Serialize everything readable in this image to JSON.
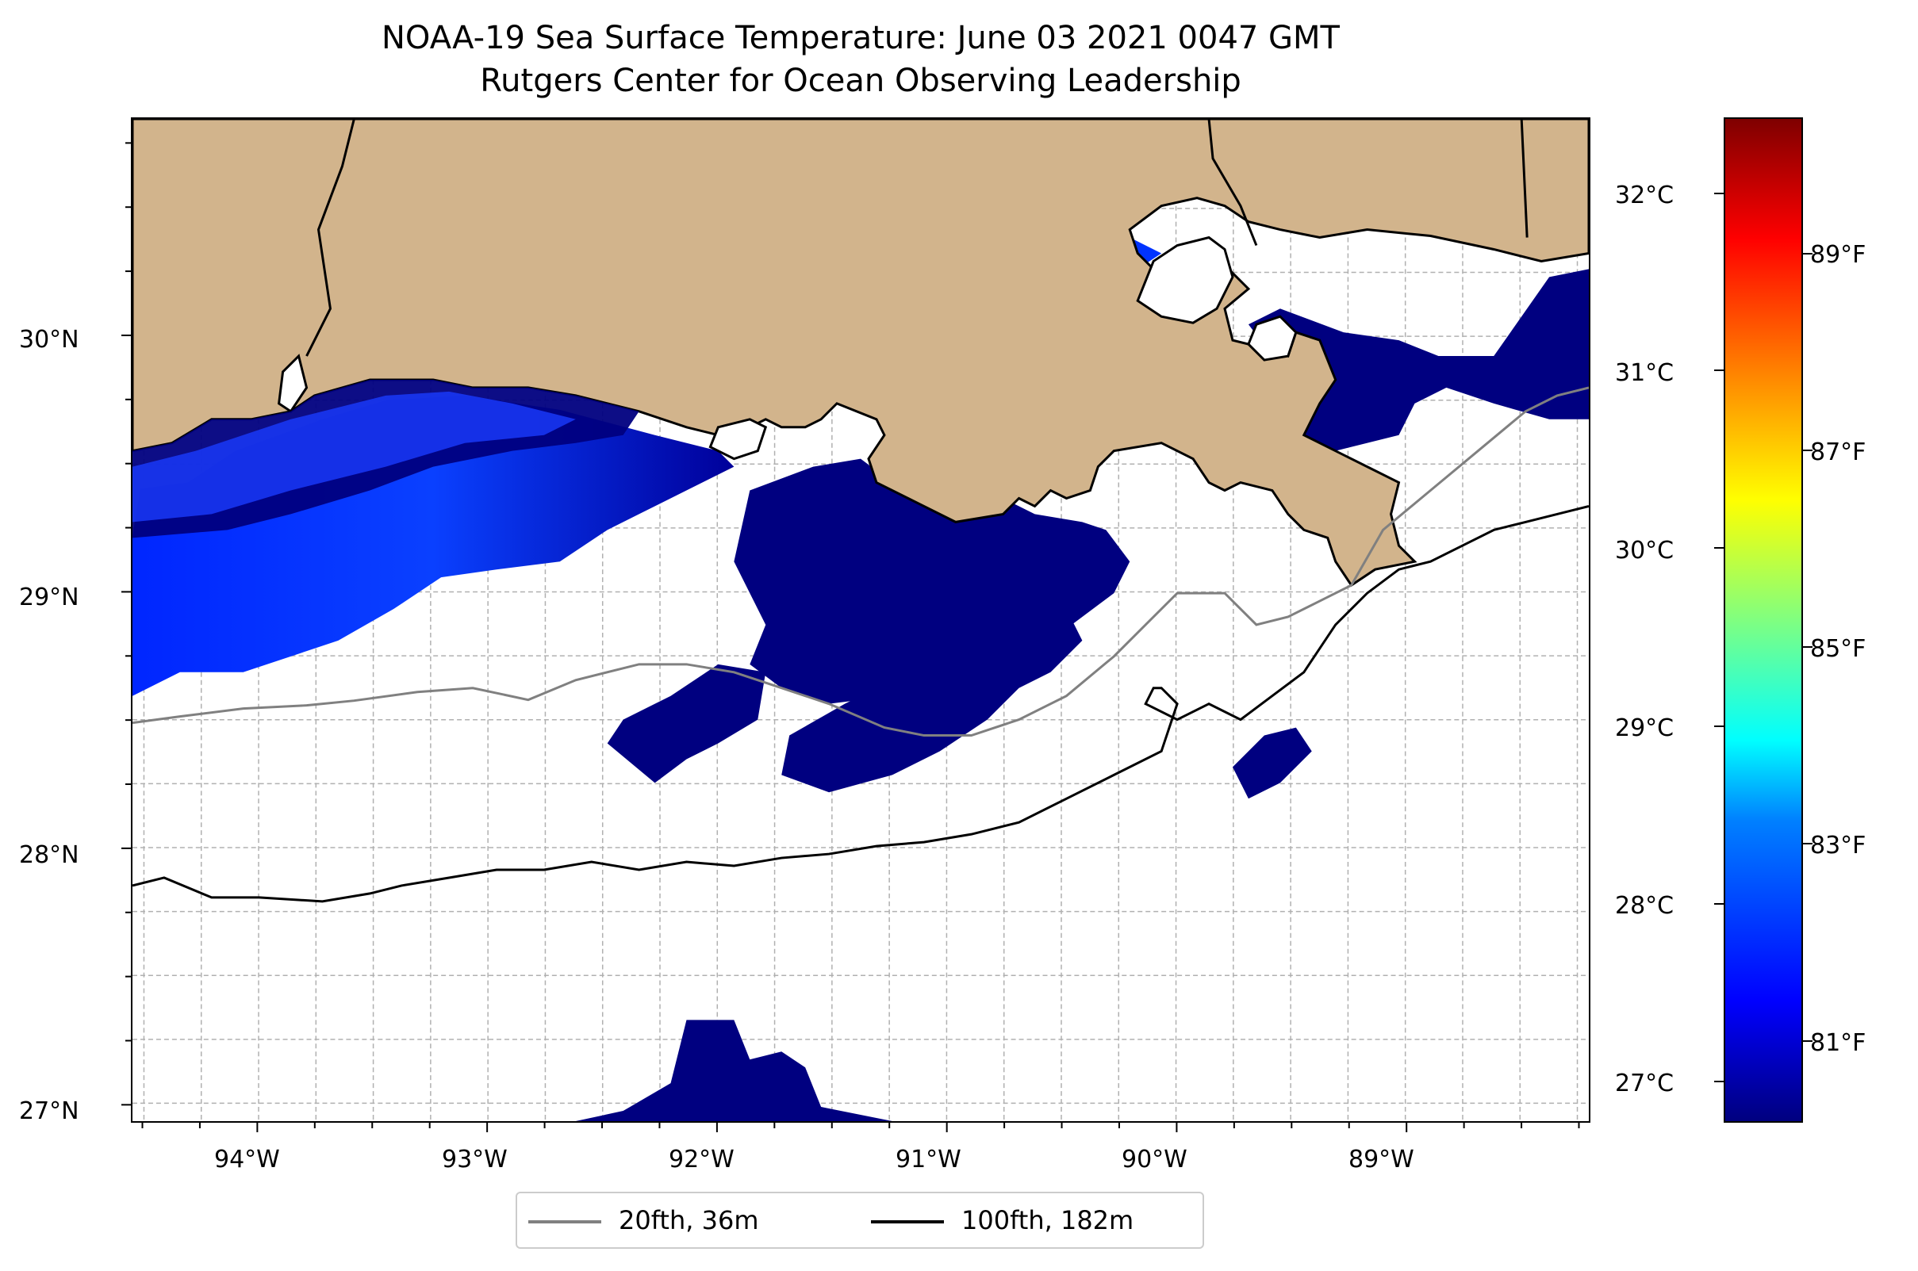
{
  "title": {
    "line1": "NOAA-19 Sea Surface Temperature: June 03 2021 0047 GMT",
    "line2": "Rutgers Center for Ocean Observing Leadership"
  },
  "map": {
    "lon_range": [
      -94.55,
      -88.2
    ],
    "lat_range": [
      26.93,
      30.85
    ],
    "lat_ticks": [
      "30°N",
      "29°N",
      "28°N",
      "27°N"
    ],
    "lon_ticks": [
      "94°W",
      "93°W",
      "92°W",
      "91°W",
      "90°W",
      "89°W"
    ],
    "land_color": "#d2b48c",
    "water_color": "#ffffff",
    "sst_color_low": "#000080",
    "sst_color_mid": "#0033ff",
    "isobath_20_color": "#808080",
    "isobath_100_color": "#000000",
    "grid": true
  },
  "colorbar": {
    "celsius_labels": [
      "32°C",
      "31°C",
      "30°C",
      "29°C",
      "28°C",
      "27°C"
    ],
    "fahrenheit_labels": [
      "89°F",
      "87°F",
      "85°F",
      "83°F",
      "81°F"
    ],
    "colormap": "jet",
    "range_celsius": [
      26.75,
      32.4
    ]
  },
  "legend": {
    "items": [
      {
        "label": "20fth, 36m",
        "color": "#808080"
      },
      {
        "label": "100fth, 182m",
        "color": "#000000"
      }
    ]
  }
}
